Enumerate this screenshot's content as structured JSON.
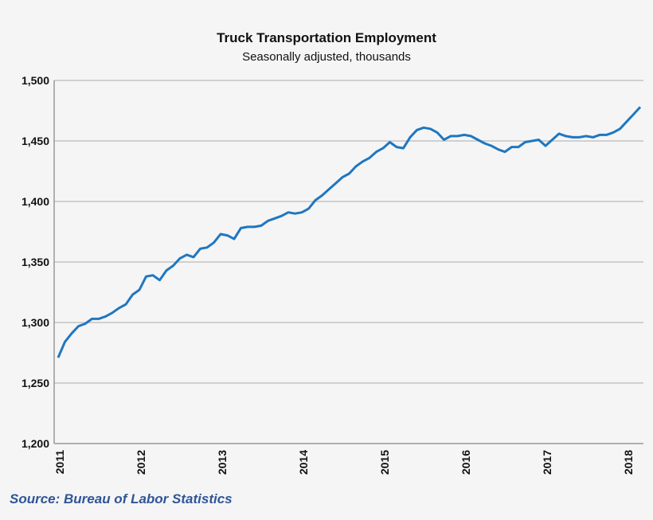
{
  "chart_data": {
    "type": "line",
    "title": "Truck Transportation Employment",
    "subtitle": "Seasonally adjusted, thousands",
    "source": "Source: Bureau of Labor Statistics",
    "xlabel": "",
    "ylabel": "",
    "ylim": [
      1200,
      1500
    ],
    "yticks": [
      "1,200",
      "1,250",
      "1,300",
      "1,350",
      "1,400",
      "1,450",
      "1,500"
    ],
    "yticks_values": [
      1200,
      1250,
      1300,
      1350,
      1400,
      1450,
      1500
    ],
    "xticks": [
      "2011",
      "2012",
      "2013",
      "2014",
      "2015",
      "2016",
      "2017",
      "2018"
    ],
    "grid": "horizontal",
    "line_color": "#1f77c0",
    "start": "2011-01",
    "frequency": "monthly",
    "series": [
      {
        "values": [
          1271,
          1284,
          1291,
          1297,
          1299,
          1303,
          1303,
          1305,
          1308,
          1312,
          1315,
          1323,
          1327,
          1338,
          1339,
          1335,
          1343,
          1347,
          1353,
          1356,
          1354,
          1361,
          1362,
          1366,
          1373,
          1372,
          1369,
          1378,
          1379,
          1379,
          1380,
          1384,
          1386,
          1388,
          1391,
          1390,
          1391,
          1394,
          1401,
          1405,
          1410,
          1415,
          1420,
          1423,
          1429,
          1433,
          1436,
          1441,
          1444,
          1449,
          1445,
          1444,
          1453,
          1459,
          1461,
          1460,
          1457,
          1451,
          1454,
          1454,
          1455,
          1454,
          1451,
          1448,
          1446,
          1443,
          1441,
          1445,
          1445,
          1449,
          1450,
          1451,
          1446,
          1451,
          1456,
          1454,
          1453,
          1453,
          1454,
          1453,
          1455,
          1455,
          1457,
          1460,
          1466,
          1472,
          1478
        ]
      }
    ]
  }
}
